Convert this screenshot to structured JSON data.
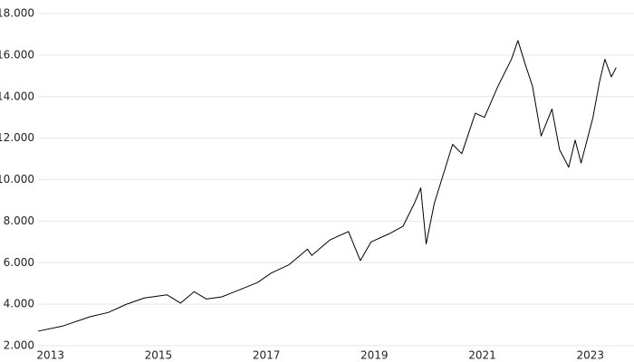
{
  "chart_data": {
    "type": "line",
    "x": [
      2012.77,
      2013.23,
      2013.74,
      2014.07,
      2014.41,
      2014.74,
      2015.16,
      2015.41,
      2015.66,
      2015.89,
      2016.17,
      2016.51,
      2016.84,
      2017.09,
      2017.42,
      2017.76,
      2017.84,
      2018.18,
      2018.52,
      2018.74,
      2018.94,
      2019.28,
      2019.53,
      2019.74,
      2019.86,
      2019.96,
      2020.11,
      2020.45,
      2020.62,
      2020.87,
      2021.04,
      2021.29,
      2021.54,
      2021.66,
      2021.79,
      2021.93,
      2022.09,
      2022.29,
      2022.43,
      2022.6,
      2022.72,
      2022.83,
      2023.05,
      2023.17,
      2023.27,
      2023.39,
      2023.48
    ],
    "values": [
      2700,
      2950,
      3400,
      3600,
      4000,
      4300,
      4450,
      4050,
      4600,
      4250,
      4350,
      4700,
      5050,
      5500,
      5900,
      6650,
      6350,
      7100,
      7500,
      6100,
      7000,
      7400,
      7750,
      8850,
      9600,
      6900,
      8850,
      11700,
      11250,
      13200,
      13000,
      14500,
      15800,
      16700,
      15600,
      14500,
      12100,
      13400,
      11450,
      10600,
      11900,
      10800,
      13000,
      14700,
      15800,
      14950,
      15400
    ],
    "color": "#000000",
    "xlim": [
      2012.77,
      2023.81
    ],
    "xticks": [
      2013,
      2015,
      2017,
      2019,
      2021,
      2023
    ],
    "ylim": [
      2000,
      18000
    ],
    "yticks": [
      {
        "value": 2000,
        "label": "2.000"
      },
      {
        "value": 4000,
        "label": "4.000"
      },
      {
        "value": 6000,
        "label": "6.000"
      },
      {
        "value": 8000,
        "label": "8.000"
      },
      {
        "value": 10000,
        "label": "10.000"
      },
      {
        "value": 12000,
        "label": "12.000"
      },
      {
        "value": 14000,
        "label": "14.000"
      },
      {
        "value": 16000,
        "label": "16.000"
      },
      {
        "value": 18000,
        "label": "18.000"
      }
    ],
    "grid": true
  }
}
